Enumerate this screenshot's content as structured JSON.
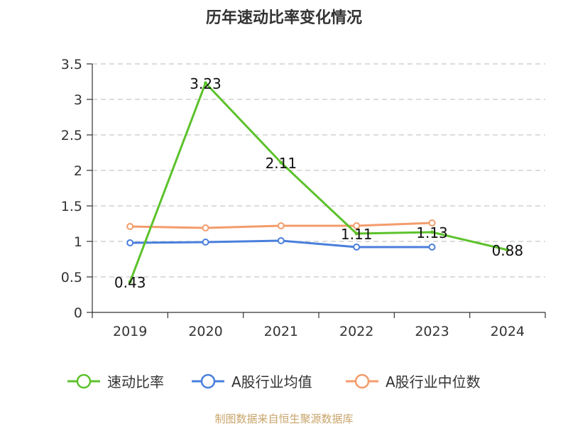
{
  "chart_data": {
    "type": "line",
    "title": "历年速动比率变化情况",
    "categories": [
      "2019",
      "2020",
      "2021",
      "2022",
      "2023",
      "2024"
    ],
    "ylim": [
      0,
      3.5
    ],
    "yticks": [
      "0",
      "0.5",
      "1",
      "1.5",
      "2",
      "2.5",
      "3",
      "3.5"
    ],
    "grid": true,
    "legend_position": "bottom",
    "series": [
      {
        "name": "速动比率",
        "color": "#5cc22b",
        "values": [
          0.43,
          3.23,
          2.11,
          1.11,
          1.13,
          0.88
        ],
        "labels": [
          "0.43",
          "3.23",
          "2.11",
          "1.11",
          "1.13",
          "0.88"
        ]
      },
      {
        "name": "A股行业均值",
        "color": "#4a7fdc",
        "values": [
          0.98,
          0.99,
          1.01,
          0.92,
          0.92,
          null
        ]
      },
      {
        "name": "A股行业中位数",
        "color": "#f39c6b",
        "values": [
          1.21,
          1.19,
          1.22,
          1.22,
          1.26,
          null
        ]
      }
    ],
    "source": "制图数据来自恒生聚源数据库"
  }
}
